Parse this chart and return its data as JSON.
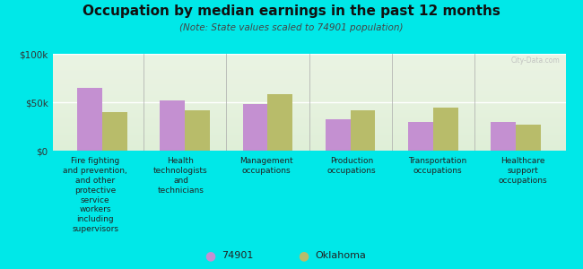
{
  "title": "Occupation by median earnings in the past 12 months",
  "subtitle": "(Note: State values scaled to 74901 population)",
  "background_color": "#00e8e8",
  "plot_bg_color": "#e8f2e0",
  "categories": [
    "Fire fighting\nand prevention,\nand other\nprotective\nservice\nworkers\nincluding\nsupervisors",
    "Health\ntechnologists\nand\ntechnicians",
    "Management\noccupations",
    "Production\noccupations",
    "Transportation\noccupations",
    "Healthcare\nsupport\noccupations"
  ],
  "values_74901": [
    65000,
    52000,
    48000,
    32000,
    30000,
    30000
  ],
  "values_oklahoma": [
    40000,
    42000,
    58000,
    42000,
    44000,
    27000
  ],
  "color_74901": "#c490d1",
  "color_oklahoma": "#b8bc6a",
  "ylim": [
    0,
    100000
  ],
  "yticks": [
    0,
    50000,
    100000
  ],
  "ytick_labels": [
    "$0",
    "$50k",
    "$100k"
  ],
  "legend_labels": [
    "74901",
    "Oklahoma"
  ],
  "bar_width": 0.3,
  "watermark": "City-Data.com"
}
